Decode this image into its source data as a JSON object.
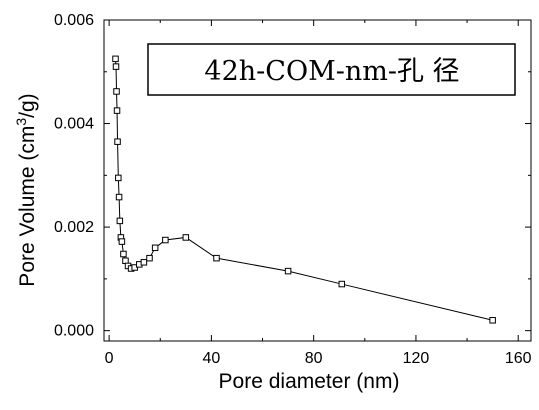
{
  "chart_data": {
    "type": "scatter",
    "title": "",
    "legend_text": "42h-COM-nm-孔 径",
    "legend_position": "top-right",
    "xlabel": "Pore diameter (nm)",
    "ylabel_main": "Pore Volume (cm",
    "ylabel_sup": "3",
    "ylabel_end": "/g)",
    "xlim": [
      -2,
      165
    ],
    "ylim": [
      -0.0002,
      0.006
    ],
    "x_ticks": [
      "0",
      "40",
      "80",
      "120",
      "160"
    ],
    "y_ticks": [
      "0.000",
      "0.002",
      "0.004",
      "0.006"
    ],
    "grid": false,
    "series": [
      {
        "marker": "open-square",
        "line": true,
        "color": "#000000",
        "x": [
          2.5,
          2.7,
          2.9,
          3.1,
          3.3,
          3.6,
          3.9,
          4.2,
          4.6,
          5.0,
          5.6,
          6.4,
          7.4,
          8.6,
          10.0,
          11.8,
          13.6,
          15.8,
          18.0,
          22.0,
          30.0,
          42.0,
          70.0,
          91.0,
          150.0
        ],
        "y": [
          0.00525,
          0.0051,
          0.00462,
          0.00425,
          0.00365,
          0.00295,
          0.00258,
          0.00212,
          0.0018,
          0.00172,
          0.00148,
          0.00135,
          0.00125,
          0.0012,
          0.00122,
          0.00128,
          0.00132,
          0.0014,
          0.0016,
          0.00175,
          0.0018,
          0.0014,
          0.00115,
          0.0009,
          0.0002
        ]
      }
    ]
  }
}
